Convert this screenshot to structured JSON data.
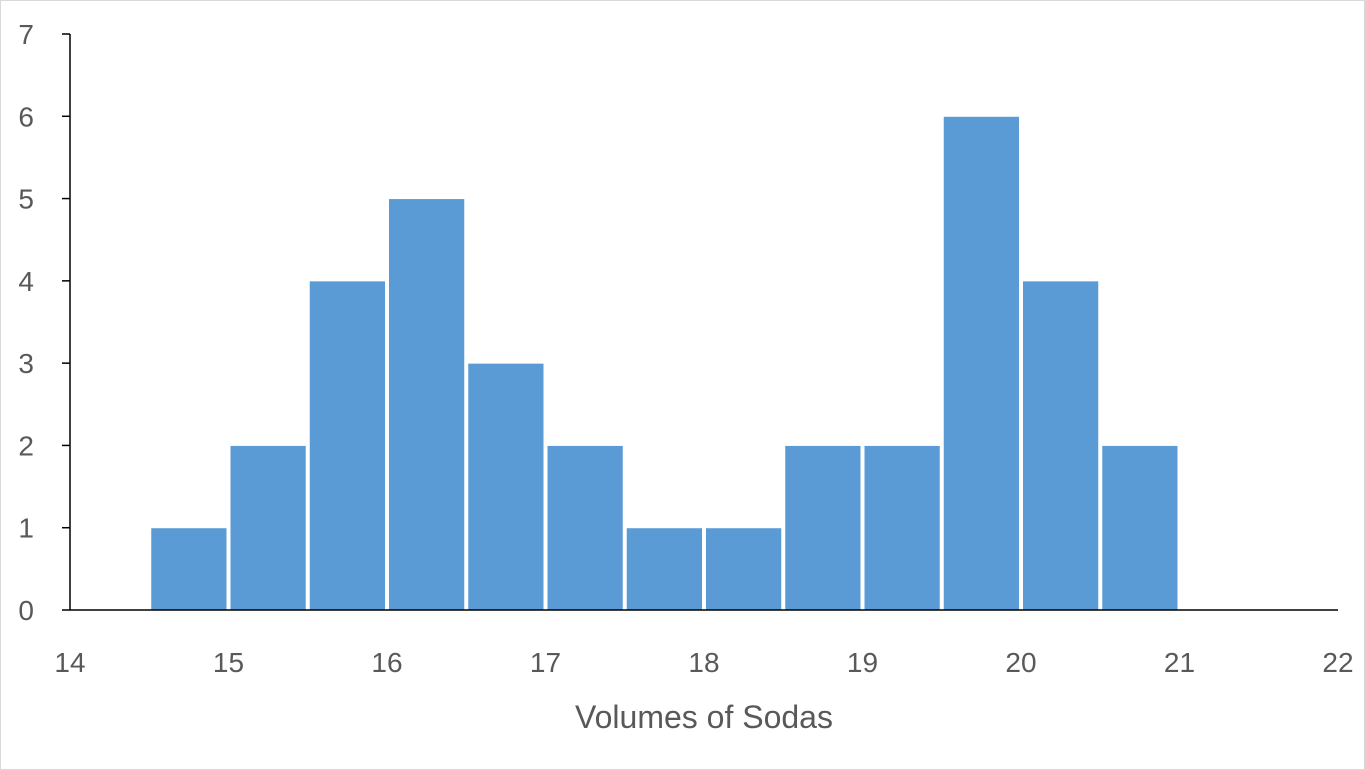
{
  "chart_data": {
    "type": "bar",
    "bin_width": 0.5,
    "bins": [
      {
        "start": 14.5,
        "end": 15.0,
        "count": 1
      },
      {
        "start": 15.0,
        "end": 15.5,
        "count": 2
      },
      {
        "start": 15.5,
        "end": 16.0,
        "count": 4
      },
      {
        "start": 16.0,
        "end": 16.5,
        "count": 5
      },
      {
        "start": 16.5,
        "end": 17.0,
        "count": 3
      },
      {
        "start": 17.0,
        "end": 17.5,
        "count": 2
      },
      {
        "start": 17.5,
        "end": 18.0,
        "count": 1
      },
      {
        "start": 18.0,
        "end": 18.5,
        "count": 1
      },
      {
        "start": 18.5,
        "end": 19.0,
        "count": 2
      },
      {
        "start": 19.0,
        "end": 19.5,
        "count": 2
      },
      {
        "start": 19.5,
        "end": 20.0,
        "count": 6
      },
      {
        "start": 20.0,
        "end": 20.5,
        "count": 4
      },
      {
        "start": 20.5,
        "end": 21.0,
        "count": 2
      }
    ],
    "xlabel": "Volumes of Sodas",
    "ylabel": "",
    "xlim": [
      14,
      22
    ],
    "ylim": [
      0,
      7
    ],
    "x_ticks": [
      "14",
      "15",
      "16",
      "17",
      "18",
      "19",
      "20",
      "21",
      "22"
    ],
    "y_ticks": [
      "0",
      "1",
      "2",
      "3",
      "4",
      "5",
      "6",
      "7"
    ],
    "bar_color": "#5b9bd5",
    "grid": false,
    "legend": "none"
  }
}
